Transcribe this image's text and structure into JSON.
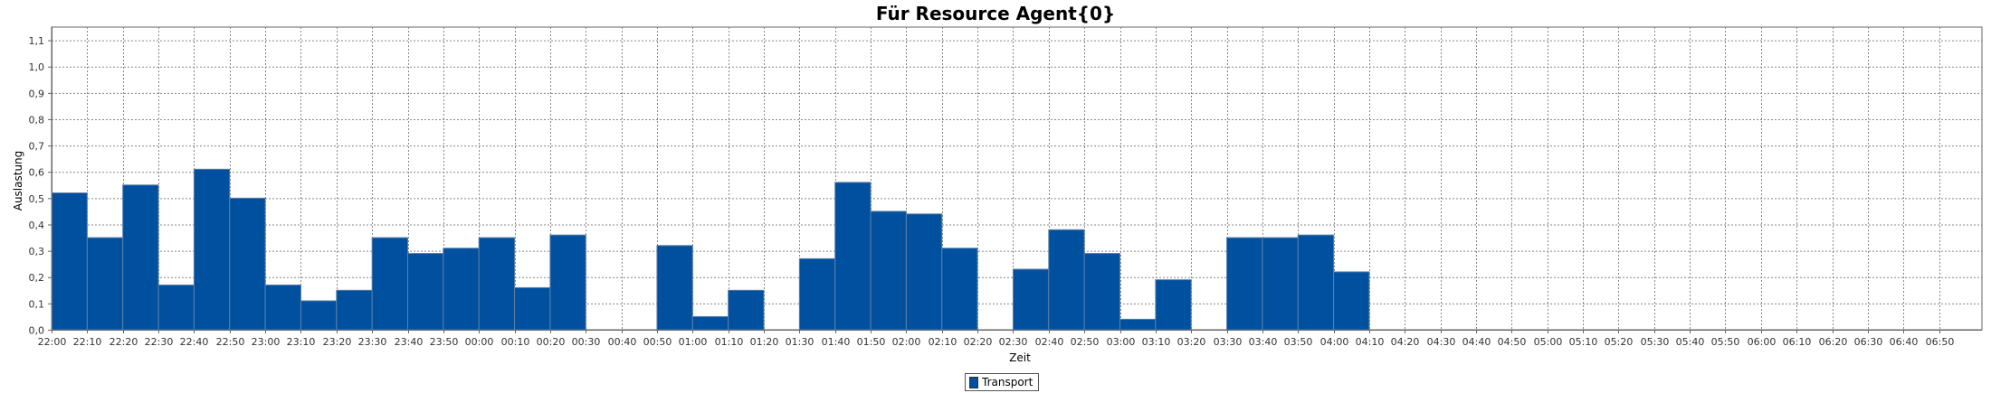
{
  "chart_data": {
    "type": "bar",
    "title": "Für Resource Agent{0}",
    "xlabel": "Zeit",
    "ylabel": "Auslastung",
    "ylim": [
      0,
      1.15
    ],
    "y_ticks": [
      "0,0",
      "0,1",
      "0,2",
      "0,3",
      "0,4",
      "0,5",
      "0,6",
      "0,7",
      "0,8",
      "0,9",
      "1,0",
      "1,1"
    ],
    "grid": true,
    "legend_position": "bottom-center",
    "colors": {
      "bar": "#0050a0",
      "bar_edge": "#5d7fa6",
      "grid": "#888888",
      "axis": "#666666"
    },
    "categories": [
      "22:00",
      "22:10",
      "22:20",
      "22:30",
      "22:40",
      "22:50",
      "23:00",
      "23:10",
      "23:20",
      "23:30",
      "23:40",
      "23:50",
      "00:00",
      "00:10",
      "00:20",
      "00:30",
      "00:40",
      "00:50",
      "01:00",
      "01:10",
      "01:20",
      "01:30",
      "01:40",
      "01:50",
      "02:00",
      "02:10",
      "02:20",
      "02:30",
      "02:40",
      "02:50",
      "03:00",
      "03:10",
      "03:20",
      "03:30",
      "03:40",
      "03:50",
      "04:00",
      "04:10",
      "04:20",
      "04:30",
      "04:40",
      "04:50",
      "05:00",
      "05:10",
      "05:20",
      "05:30",
      "05:40",
      "05:50",
      "06:00",
      "06:10",
      "06:20",
      "06:30",
      "06:40",
      "06:50"
    ],
    "series": [
      {
        "name": "Transport",
        "values": [
          0.52,
          0.35,
          0.55,
          0.17,
          0.61,
          0.5,
          0.17,
          0.11,
          0.15,
          0.35,
          0.29,
          0.31,
          0.35,
          0.16,
          0.36,
          0,
          0,
          0.32,
          0.05,
          0.15,
          0,
          0.27,
          0.56,
          0.45,
          0.44,
          0.31,
          0,
          0.23,
          0.38,
          0.29,
          0.04,
          0.19,
          0,
          0.35,
          0.35,
          0.36,
          0.22,
          0,
          0,
          0,
          0,
          0,
          0,
          0,
          0,
          0,
          0,
          0,
          0,
          0,
          0,
          0,
          0,
          0
        ]
      }
    ]
  }
}
